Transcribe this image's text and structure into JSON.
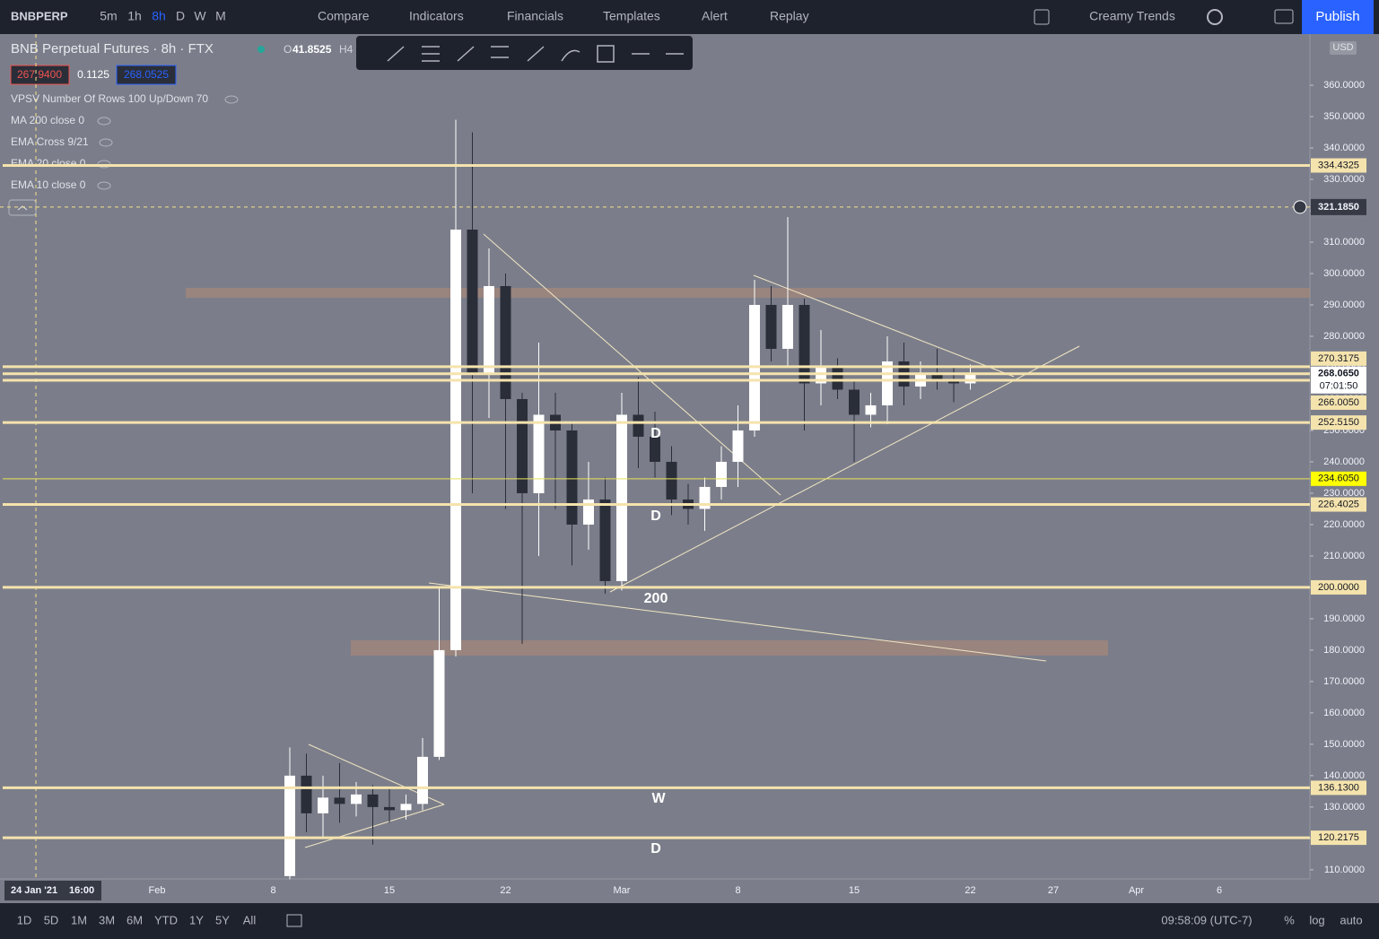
{
  "toolbar": {
    "symbol": "BNBPERP",
    "intervals": [
      "5m",
      "1h",
      "8h",
      "D",
      "W",
      "M"
    ],
    "buttons": [
      "Compare",
      "Indicators",
      "Financials",
      "Templates",
      "Alert",
      "Replay"
    ],
    "layout_name": "Creamy Trends",
    "publish": "Publish"
  },
  "legend": {
    "title": "BNB Perpetual Futures · 8h · FTX",
    "open_label": "O",
    "open": "41.8525",
    "high_label": "H4",
    "bid": "267.9400",
    "spread": "0.1125",
    "ask": "268.0525",
    "indicators": [
      "VPSV Number Of Rows 100 Up/Down 70",
      "MA 200 close 0",
      "EMA Cross 9/21",
      "EMA 20 close 0",
      "EMA 10 close 0"
    ]
  },
  "chart_data": {
    "type": "candlestick",
    "currency": "USD",
    "up_color": "#ffffff",
    "down_color": "#2a2e39",
    "categories": [
      null,
      null,
      null,
      null,
      null,
      null,
      null,
      null,
      "Feb",
      null,
      null,
      null,
      null,
      null,
      null,
      "8",
      null,
      null,
      null,
      null,
      null,
      null,
      "15",
      null,
      null,
      null,
      null,
      null,
      null,
      "22",
      null,
      null,
      null,
      null,
      null,
      null,
      "Mar",
      null,
      null,
      null,
      null,
      null,
      null,
      "8",
      null,
      null,
      null,
      null,
      null,
      null,
      "15",
      null,
      null,
      null,
      null,
      null,
      null,
      "22",
      null,
      null,
      null,
      null,
      "27",
      null,
      null,
      null,
      null,
      "Apr",
      null,
      null,
      null,
      null,
      "6",
      null,
      null,
      null
    ],
    "open": [
      null,
      null,
      null,
      null,
      null,
      null,
      null,
      null,
      null,
      null,
      null,
      null,
      null,
      null,
      null,
      null,
      108,
      140,
      128,
      133,
      131,
      134,
      130,
      129,
      131,
      146,
      180,
      314,
      268,
      296,
      260,
      230,
      255,
      250,
      220,
      228,
      202,
      255,
      248,
      240,
      228,
      225,
      232,
      240,
      250,
      290,
      276,
      290,
      265,
      270,
      263,
      255,
      258,
      272,
      264,
      268,
      266,
      265,
      null,
      null,
      null,
      null,
      null,
      null,
      null,
      null,
      null,
      null,
      null,
      null,
      null,
      null,
      null,
      null,
      null,
      null
    ],
    "high": [
      null,
      null,
      null,
      null,
      null,
      null,
      null,
      null,
      null,
      null,
      null,
      null,
      null,
      null,
      null,
      null,
      149,
      147,
      140,
      144,
      138,
      137,
      136,
      134,
      152,
      200,
      349,
      345,
      308,
      300,
      262,
      278,
      262,
      253,
      240,
      235,
      262,
      267,
      256,
      245,
      233,
      235,
      245,
      258,
      298,
      296,
      318,
      292,
      282,
      273,
      266,
      262,
      280,
      278,
      272,
      276,
      270,
      271,
      null,
      null,
      null,
      null,
      null,
      null,
      null,
      null,
      null,
      null,
      null,
      null,
      null,
      null,
      null,
      null,
      null,
      null
    ],
    "low": [
      null,
      null,
      null,
      null,
      null,
      null,
      null,
      null,
      null,
      null,
      null,
      null,
      null,
      null,
      null,
      null,
      107,
      122,
      120,
      125,
      127,
      118,
      125,
      126,
      129,
      145,
      178,
      230,
      254,
      225,
      182,
      210,
      225,
      207,
      212,
      198,
      199,
      238,
      235,
      223,
      220,
      218,
      228,
      232,
      248,
      272,
      270,
      250,
      258,
      260,
      240,
      251,
      252,
      258,
      260,
      263,
      259,
      263,
      null,
      null,
      null,
      null,
      null,
      null,
      null,
      null,
      null,
      null,
      null,
      null,
      null,
      null,
      null,
      null,
      null,
      null
    ],
    "close": [
      null,
      null,
      null,
      null,
      null,
      null,
      null,
      null,
      null,
      null,
      null,
      null,
      null,
      null,
      null,
      null,
      140,
      128,
      133,
      131,
      134,
      130,
      129,
      131,
      146,
      180,
      314,
      268,
      296,
      260,
      230,
      255,
      250,
      220,
      228,
      202,
      255,
      248,
      240,
      228,
      225,
      232,
      240,
      250,
      290,
      276,
      290,
      265,
      270,
      263,
      255,
      258,
      272,
      264,
      268,
      266,
      265,
      268.065,
      null,
      null,
      null,
      null,
      null,
      null,
      null,
      null,
      null,
      null,
      null,
      null,
      null,
      null,
      null,
      null,
      null,
      null
    ],
    "ylim": [
      107.1,
      376.3
    ],
    "yticks": [
      {
        "value": 110,
        "label": "110.0000"
      },
      {
        "value": 120,
        "label": "120.0000"
      },
      {
        "value": 130,
        "label": "130.0000"
      },
      {
        "value": 140,
        "label": "140.0000"
      },
      {
        "value": 150,
        "label": "150.0000"
      },
      {
        "value": 160,
        "label": "160.0000"
      },
      {
        "value": 170,
        "label": "170.0000"
      },
      {
        "value": 180,
        "label": "180.0000"
      },
      {
        "value": 190,
        "label": "190.0000"
      },
      {
        "value": 200,
        "label": "200.0000"
      },
      {
        "value": 210,
        "label": "210.0000"
      },
      {
        "value": 220,
        "label": "220.0000"
      },
      {
        "value": 230,
        "label": "230.0000"
      },
      {
        "value": 240,
        "label": "240.0000"
      },
      {
        "value": 250,
        "label": "250.0000"
      },
      {
        "value": 260,
        "label": "260.0000"
      },
      {
        "value": 270,
        "label": "270.0000"
      },
      {
        "value": 280,
        "label": "280.0000"
      },
      {
        "value": 290,
        "label": "290.0000"
      },
      {
        "value": 300,
        "label": "300.0000"
      },
      {
        "value": 310,
        "label": "310.0000"
      },
      {
        "value": 320,
        "label": "320.0000"
      },
      {
        "value": 330,
        "label": "330.0000"
      },
      {
        "value": 340,
        "label": "340.0000"
      },
      {
        "value": 350,
        "label": "350.0000"
      },
      {
        "value": 360,
        "label": "360.0000"
      }
    ],
    "levels": [
      {
        "value": 334.4325,
        "label": "334.4325"
      },
      {
        "value": 270.3175,
        "label": "270.3175"
      },
      {
        "value": 266.005,
        "label": "266.0050"
      },
      {
        "value": 252.515,
        "label": "252.5150"
      },
      {
        "value": 234.605,
        "label": "234.6050"
      },
      {
        "value": 226.4025,
        "label": "226.4025"
      },
      {
        "value": 200,
        "label": "200.0000"
      },
      {
        "value": 136.13,
        "label": "136.1300"
      },
      {
        "value": 120.2175,
        "label": "120.2175"
      }
    ],
    "current_price": {
      "value": 268.065,
      "label": "268.0650"
    },
    "countdown": "07:01:50",
    "crosshair": {
      "value": 321.185,
      "label": "321.1850",
      "date": "24 Jan '21",
      "time": "16:00"
    },
    "annotations": [
      "D",
      "D",
      "200",
      "W",
      "D"
    ]
  },
  "bottom_bar": {
    "ranges": [
      "1D",
      "5D",
      "1M",
      "3M",
      "6M",
      "YTD",
      "1Y",
      "5Y",
      "All"
    ],
    "clock": "09:58:09 (UTC-7)",
    "percent": "%",
    "log": "log",
    "auto": "auto"
  }
}
